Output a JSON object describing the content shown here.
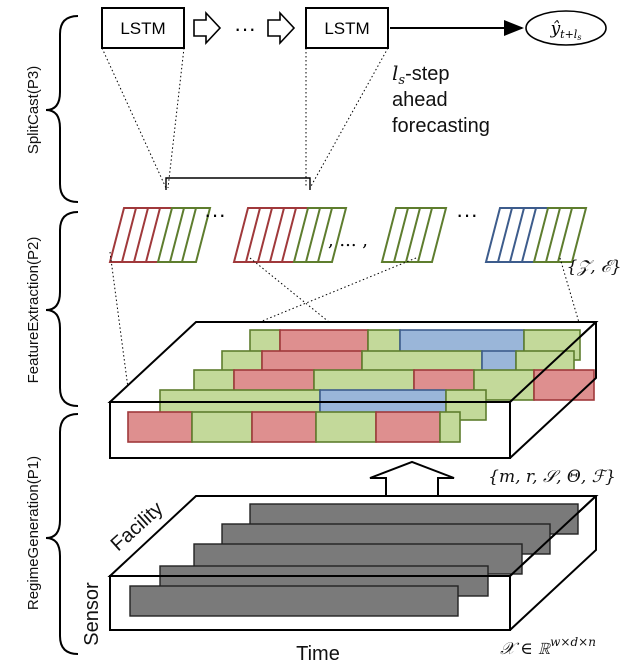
{
  "phases": {
    "p3": "SplitCast(P3)",
    "p2": "FeatureExtraction(P2)",
    "p1": "RegimeGeneration(P1)"
  },
  "lstm": {
    "box1": "LSTM",
    "box2": "LSTM",
    "ellipsis": "···",
    "output": "ŷ",
    "output_sub": "t+l",
    "output_subsub": "s"
  },
  "forecast": {
    "line1_var": "l",
    "line1_sub": "s",
    "line1_rest": "-step",
    "line2": "ahead",
    "line3": "forecasting"
  },
  "features": {
    "dots_left": "···",
    "dots_mid": ", ... ,",
    "dots_right": "···",
    "set_label": "{𝒵, ℰ}"
  },
  "regime": {
    "params": "{m, r, 𝒮, Θ, ℱ}"
  },
  "input": {
    "facility": "Facility",
    "sensor": "Sensor",
    "time": "Time",
    "tensor": "𝒳 ∈ ℝ",
    "tensor_sup": "w×d×n"
  },
  "colors": {
    "red_regime": "#de8f8f",
    "green_regime": "#c3d99a",
    "blue_regime": "#9ab6d9",
    "sensor_bar": "#7a7a7a",
    "red_frame": "#a0393b",
    "green_frame": "#5e7d2e",
    "blue_frame": "#3d5c8c"
  }
}
